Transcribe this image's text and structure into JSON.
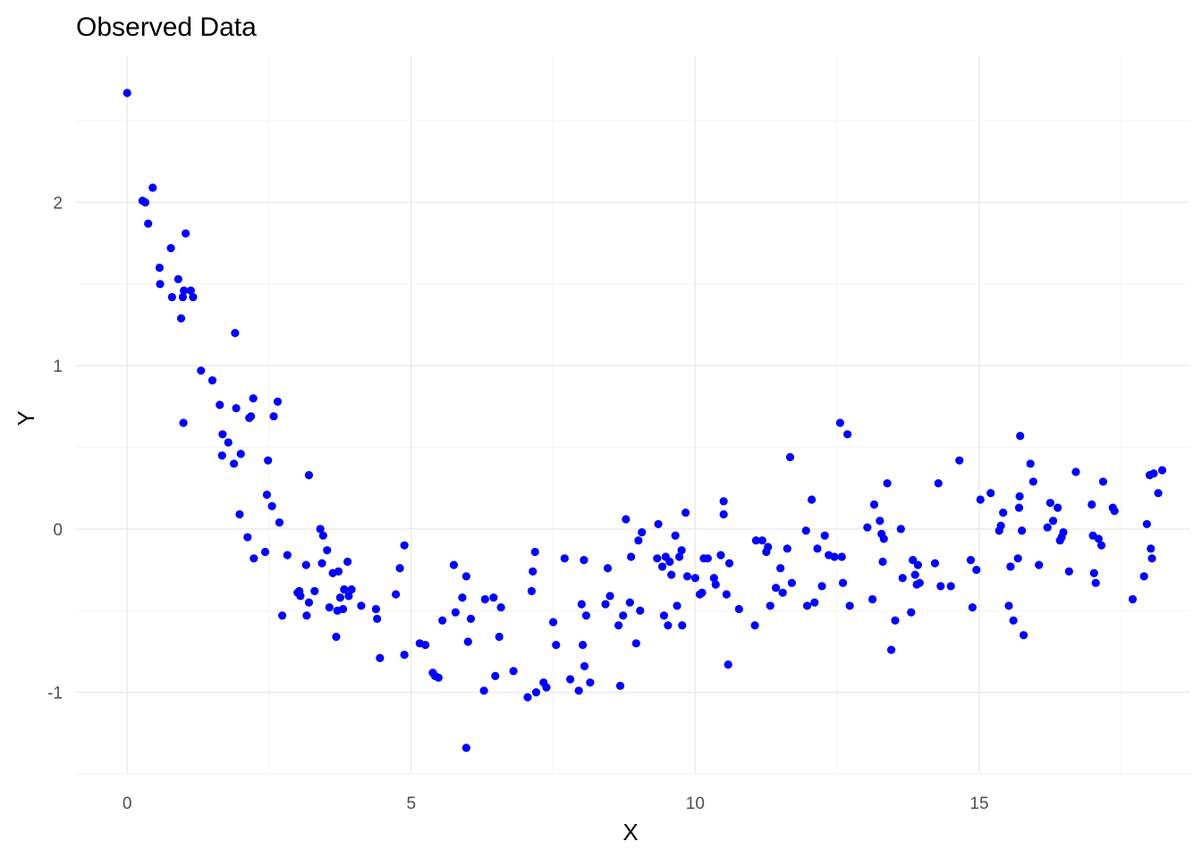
{
  "chart_data": {
    "type": "scatter",
    "title": "Observed Data",
    "xlabel": "X",
    "ylabel": "Y",
    "xlim": [
      -0.9,
      18.7
    ],
    "ylim": [
      -1.5,
      2.9
    ],
    "x_ticks": [
      0,
      5,
      10,
      15
    ],
    "y_ticks": [
      -1,
      0,
      1,
      2
    ],
    "x_tick_labels": [
      "0",
      "5",
      "10",
      "15"
    ],
    "y_tick_labels": [
      "-1",
      "0",
      "1",
      "2"
    ],
    "grid": true,
    "legend": "none",
    "point_color": "#0000ff",
    "points": [
      [
        0.0,
        2.67
      ],
      [
        0.27,
        2.01
      ],
      [
        0.32,
        2.0
      ],
      [
        0.37,
        1.87
      ],
      [
        0.45,
        2.09
      ],
      [
        0.57,
        1.6
      ],
      [
        0.58,
        1.5
      ],
      [
        0.77,
        1.72
      ],
      [
        0.79,
        1.42
      ],
      [
        0.9,
        1.53
      ],
      [
        0.95,
        1.29
      ],
      [
        0.98,
        1.42
      ],
      [
        0.99,
        0.65
      ],
      [
        1.0,
        1.46
      ],
      [
        1.03,
        1.81
      ],
      [
        1.12,
        1.46
      ],
      [
        1.16,
        1.42
      ],
      [
        1.3,
        0.97
      ],
      [
        1.5,
        0.91
      ],
      [
        1.63,
        0.76
      ],
      [
        1.67,
        0.45
      ],
      [
        1.68,
        0.58
      ],
      [
        1.78,
        0.53
      ],
      [
        1.88,
        0.4
      ],
      [
        1.9,
        1.2
      ],
      [
        1.92,
        0.74
      ],
      [
        1.98,
        0.09
      ],
      [
        2.0,
        0.46
      ],
      [
        2.12,
        -0.05
      ],
      [
        2.15,
        0.68
      ],
      [
        2.18,
        0.69
      ],
      [
        2.22,
        0.8
      ],
      [
        2.23,
        -0.18
      ],
      [
        2.43,
        -0.14
      ],
      [
        2.46,
        0.21
      ],
      [
        2.48,
        0.42
      ],
      [
        2.55,
        0.14
      ],
      [
        2.58,
        0.69
      ],
      [
        2.65,
        0.78
      ],
      [
        2.68,
        0.04
      ],
      [
        2.73,
        -0.53
      ],
      [
        2.82,
        -0.16
      ],
      [
        3.0,
        -0.39
      ],
      [
        3.03,
        -0.38
      ],
      [
        3.05,
        -0.41
      ],
      [
        3.15,
        -0.22
      ],
      [
        3.16,
        -0.53
      ],
      [
        3.2,
        0.33
      ],
      [
        3.2,
        -0.45
      ],
      [
        3.3,
        -0.38
      ],
      [
        3.4,
        0.0
      ],
      [
        3.43,
        -0.21
      ],
      [
        3.45,
        -0.04
      ],
      [
        3.52,
        -0.13
      ],
      [
        3.56,
        -0.48
      ],
      [
        3.62,
        -0.27
      ],
      [
        3.68,
        -0.66
      ],
      [
        3.7,
        -0.5
      ],
      [
        3.72,
        -0.26
      ],
      [
        3.75,
        -0.42
      ],
      [
        3.8,
        -0.49
      ],
      [
        3.82,
        -0.37
      ],
      [
        3.88,
        -0.2
      ],
      [
        3.9,
        -0.41
      ],
      [
        3.95,
        -0.37
      ],
      [
        4.12,
        -0.47
      ],
      [
        4.38,
        -0.49
      ],
      [
        4.4,
        -0.55
      ],
      [
        4.45,
        -0.79
      ],
      [
        4.73,
        -0.4
      ],
      [
        4.8,
        -0.24
      ],
      [
        4.88,
        -0.1
      ],
      [
        4.88,
        -0.77
      ],
      [
        5.15,
        -0.7
      ],
      [
        5.25,
        -0.71
      ],
      [
        5.38,
        -0.88
      ],
      [
        5.42,
        -0.9
      ],
      [
        5.48,
        -0.91
      ],
      [
        5.55,
        -0.56
      ],
      [
        5.75,
        -0.22
      ],
      [
        5.78,
        -0.51
      ],
      [
        5.9,
        -0.42
      ],
      [
        5.97,
        -0.29
      ],
      [
        5.97,
        -1.34
      ],
      [
        6.0,
        -0.69
      ],
      [
        6.05,
        -0.55
      ],
      [
        6.28,
        -0.99
      ],
      [
        6.3,
        -0.43
      ],
      [
        6.45,
        -0.42
      ],
      [
        6.48,
        -0.9
      ],
      [
        6.55,
        -0.66
      ],
      [
        6.58,
        -0.48
      ],
      [
        6.8,
        -0.87
      ],
      [
        7.05,
        -1.03
      ],
      [
        7.12,
        -0.38
      ],
      [
        7.14,
        -0.26
      ],
      [
        7.18,
        -0.14
      ],
      [
        7.2,
        -1.0
      ],
      [
        7.33,
        -0.94
      ],
      [
        7.38,
        -0.97
      ],
      [
        7.5,
        -0.57
      ],
      [
        7.55,
        -0.71
      ],
      [
        7.7,
        -0.18
      ],
      [
        7.8,
        -0.92
      ],
      [
        7.95,
        -0.99
      ],
      [
        8.0,
        -0.46
      ],
      [
        8.02,
        -0.71
      ],
      [
        8.04,
        -0.19
      ],
      [
        8.05,
        -0.84
      ],
      [
        8.08,
        -0.53
      ],
      [
        8.15,
        -0.94
      ],
      [
        8.42,
        -0.46
      ],
      [
        8.46,
        -0.24
      ],
      [
        8.5,
        -0.41
      ],
      [
        8.65,
        -0.59
      ],
      [
        8.68,
        -0.96
      ],
      [
        8.73,
        -0.53
      ],
      [
        8.78,
        0.06
      ],
      [
        8.85,
        -0.45
      ],
      [
        8.87,
        -0.17
      ],
      [
        8.96,
        -0.7
      ],
      [
        9.0,
        -0.07
      ],
      [
        9.03,
        -0.5
      ],
      [
        9.06,
        -0.02
      ],
      [
        9.33,
        -0.18
      ],
      [
        9.35,
        0.03
      ],
      [
        9.42,
        -0.23
      ],
      [
        9.45,
        -0.53
      ],
      [
        9.48,
        -0.17
      ],
      [
        9.52,
        -0.59
      ],
      [
        9.55,
        -0.2
      ],
      [
        9.58,
        -0.28
      ],
      [
        9.65,
        -0.04
      ],
      [
        9.68,
        -0.47
      ],
      [
        9.72,
        -0.17
      ],
      [
        9.76,
        -0.13
      ],
      [
        9.77,
        -0.59
      ],
      [
        9.83,
        0.1
      ],
      [
        9.86,
        -0.29
      ],
      [
        10.0,
        -0.3
      ],
      [
        10.08,
        -0.4
      ],
      [
        10.12,
        -0.39
      ],
      [
        10.15,
        -0.18
      ],
      [
        10.22,
        -0.18
      ],
      [
        10.33,
        -0.3
      ],
      [
        10.36,
        -0.34
      ],
      [
        10.45,
        -0.16
      ],
      [
        10.5,
        0.09
      ],
      [
        10.5,
        0.17
      ],
      [
        10.55,
        -0.4
      ],
      [
        10.58,
        -0.83
      ],
      [
        10.6,
        -0.21
      ],
      [
        10.77,
        -0.49
      ],
      [
        11.05,
        -0.59
      ],
      [
        11.07,
        -0.07
      ],
      [
        11.18,
        -0.07
      ],
      [
        11.25,
        -0.14
      ],
      [
        11.28,
        -0.11
      ],
      [
        11.32,
        -0.47
      ],
      [
        11.42,
        -0.36
      ],
      [
        11.5,
        -0.24
      ],
      [
        11.54,
        -0.39
      ],
      [
        11.62,
        -0.12
      ],
      [
        11.67,
        0.44
      ],
      [
        11.7,
        -0.33
      ],
      [
        11.95,
        -0.01
      ],
      [
        11.97,
        -0.47
      ],
      [
        12.05,
        0.18
      ],
      [
        12.1,
        -0.45
      ],
      [
        12.15,
        -0.12
      ],
      [
        12.23,
        -0.35
      ],
      [
        12.28,
        -0.04
      ],
      [
        12.35,
        -0.16
      ],
      [
        12.45,
        -0.17
      ],
      [
        12.55,
        0.65
      ],
      [
        12.58,
        -0.17
      ],
      [
        12.6,
        -0.33
      ],
      [
        12.68,
        0.58
      ],
      [
        12.72,
        -0.47
      ],
      [
        13.03,
        0.01
      ],
      [
        13.12,
        -0.43
      ],
      [
        13.15,
        0.15
      ],
      [
        13.25,
        0.05
      ],
      [
        13.28,
        -0.03
      ],
      [
        13.3,
        -0.2
      ],
      [
        13.32,
        -0.06
      ],
      [
        13.38,
        0.28
      ],
      [
        13.45,
        -0.74
      ],
      [
        13.52,
        -0.56
      ],
      [
        13.62,
        0.0
      ],
      [
        13.65,
        -0.3
      ],
      [
        13.8,
        -0.51
      ],
      [
        13.83,
        -0.19
      ],
      [
        13.87,
        -0.28
      ],
      [
        13.9,
        -0.34
      ],
      [
        13.92,
        -0.22
      ],
      [
        13.95,
        -0.33
      ],
      [
        14.22,
        -0.21
      ],
      [
        14.28,
        0.28
      ],
      [
        14.32,
        -0.35
      ],
      [
        14.5,
        -0.35
      ],
      [
        14.65,
        0.42
      ],
      [
        14.85,
        -0.19
      ],
      [
        14.88,
        -0.48
      ],
      [
        14.95,
        -0.25
      ],
      [
        15.02,
        0.18
      ],
      [
        15.2,
        0.22
      ],
      [
        15.35,
        -0.01
      ],
      [
        15.38,
        0.02
      ],
      [
        15.42,
        0.1
      ],
      [
        15.52,
        -0.47
      ],
      [
        15.55,
        -0.23
      ],
      [
        15.6,
        -0.56
      ],
      [
        15.68,
        -0.18
      ],
      [
        15.7,
        0.13
      ],
      [
        15.71,
        0.2
      ],
      [
        15.72,
        0.57
      ],
      [
        15.75,
        -0.01
      ],
      [
        15.78,
        -0.65
      ],
      [
        15.9,
        0.4
      ],
      [
        15.95,
        0.29
      ],
      [
        16.05,
        -0.22
      ],
      [
        16.2,
        0.01
      ],
      [
        16.25,
        0.16
      ],
      [
        16.3,
        0.05
      ],
      [
        16.38,
        0.13
      ],
      [
        16.42,
        -0.07
      ],
      [
        16.45,
        -0.05
      ],
      [
        16.48,
        -0.02
      ],
      [
        16.58,
        -0.26
      ],
      [
        16.7,
        0.35
      ],
      [
        16.98,
        0.15
      ],
      [
        17.0,
        -0.04
      ],
      [
        17.02,
        -0.27
      ],
      [
        17.05,
        -0.33
      ],
      [
        17.1,
        -0.06
      ],
      [
        17.15,
        -0.1
      ],
      [
        17.18,
        0.29
      ],
      [
        17.35,
        0.13
      ],
      [
        17.38,
        0.11
      ],
      [
        17.7,
        -0.43
      ],
      [
        17.9,
        -0.29
      ],
      [
        17.95,
        0.03
      ],
      [
        18.0,
        0.33
      ],
      [
        18.02,
        -0.12
      ],
      [
        18.04,
        -0.18
      ],
      [
        18.07,
        0.34
      ],
      [
        18.15,
        0.22
      ],
      [
        18.22,
        0.36
      ]
    ]
  }
}
